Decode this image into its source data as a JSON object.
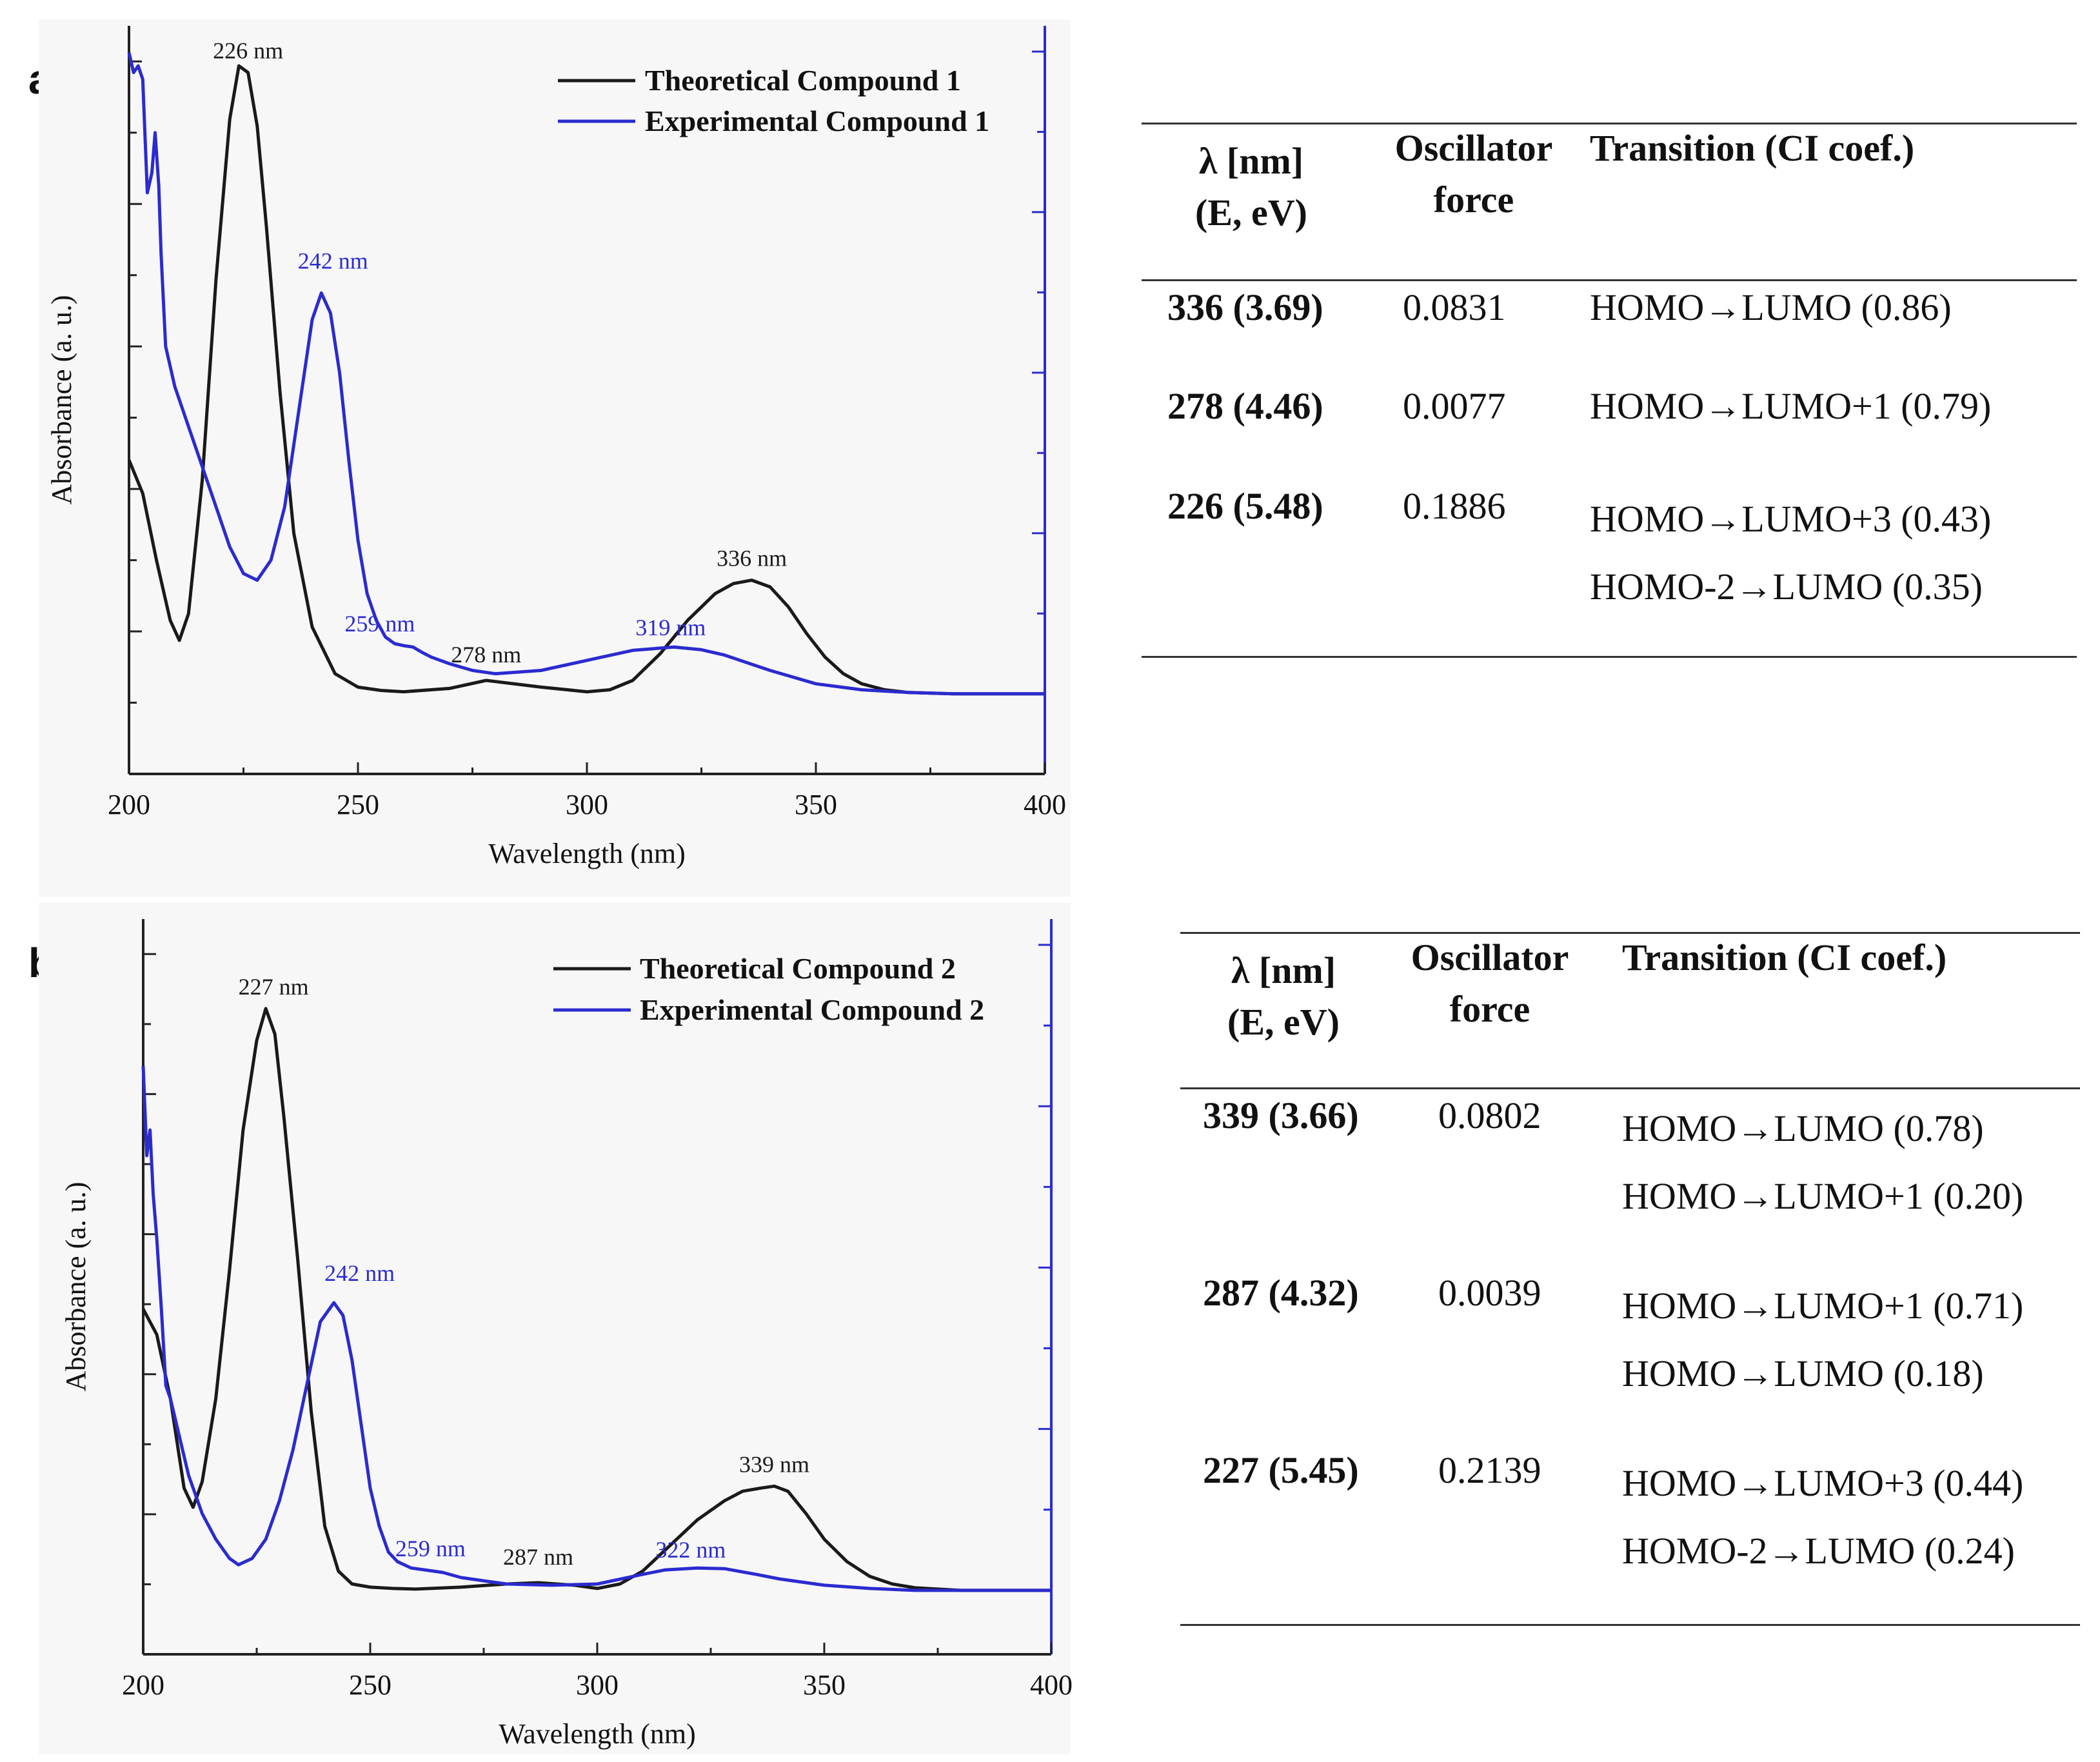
{
  "panels": [
    {
      "label": "a)",
      "chart_data": {
        "type": "line",
        "xlabel": "Wavelength (nm)",
        "ylabel": "Absorbance (a. u.)",
        "xlim": [
          200,
          400
        ],
        "xticks": [
          200,
          250,
          300,
          350,
          400
        ],
        "ylim": [
          -0.12,
          1.0
        ],
        "grid": false,
        "legend_position": "top-right",
        "series": [
          {
            "name": "Theoretical Compound 1",
            "color": "#1a1a1a",
            "x": [
              200,
              203,
              206,
              209,
              211,
              213,
              216,
              219,
              222,
              224,
              226,
              228,
              230,
              233,
              236,
              240,
              245,
              250,
              255,
              260,
              270,
              278,
              290,
              300,
              305,
              310,
              316,
              322,
              328,
              332,
              336,
              340,
              344,
              348,
              352,
              356,
              360,
              365,
              370,
              380,
              390,
              400
            ],
            "y": [
              0.35,
              0.3,
              0.2,
              0.11,
              0.08,
              0.12,
              0.32,
              0.62,
              0.86,
              0.94,
              0.93,
              0.85,
              0.7,
              0.45,
              0.24,
              0.1,
              0.03,
              0.01,
              0.005,
              0.003,
              0.008,
              0.02,
              0.01,
              0.003,
              0.006,
              0.02,
              0.06,
              0.11,
              0.15,
              0.165,
              0.17,
              0.16,
              0.13,
              0.09,
              0.055,
              0.03,
              0.015,
              0.006,
              0.002,
              0.0,
              0.0,
              0.0
            ]
          },
          {
            "name": "Experimental Compound 1",
            "color": "#2b2bd0",
            "x": [
              200,
              201,
              202,
              203,
              204,
              205,
              205.7,
              206.5,
              207,
              208,
              210,
              213,
              216,
              219,
              222,
              225,
              228,
              231,
              234,
              237,
              240,
              242,
              244,
              246,
              248,
              250,
              252,
              254,
              256,
              258,
              260,
              262,
              264,
              266,
              270,
              275,
              280,
              290,
              300,
              310,
              319,
              325,
              330,
              340,
              350,
              360,
              370,
              380,
              390,
              400
            ],
            "y": [
              0.96,
              0.93,
              0.94,
              0.92,
              0.75,
              0.78,
              0.84,
              0.76,
              0.66,
              0.52,
              0.46,
              0.4,
              0.34,
              0.28,
              0.22,
              0.18,
              0.17,
              0.2,
              0.28,
              0.42,
              0.56,
              0.6,
              0.57,
              0.48,
              0.35,
              0.23,
              0.15,
              0.11,
              0.085,
              0.075,
              0.072,
              0.07,
              0.062,
              0.055,
              0.045,
              0.035,
              0.03,
              0.035,
              0.05,
              0.065,
              0.07,
              0.066,
              0.058,
              0.035,
              0.015,
              0.006,
              0.002,
              0.0,
              0.0,
              0.0
            ]
          }
        ],
        "annotations": [
          {
            "text": "226 nm",
            "x": 226,
            "y": 0.93,
            "series": "Theoretical Compound 1"
          },
          {
            "text": "242 nm",
            "x": 242,
            "y": 0.6,
            "series": "Experimental Compound 1"
          },
          {
            "text": "259 nm",
            "x": 259,
            "y": 0.072,
            "series": "Experimental Compound 1"
          },
          {
            "text": "278 nm",
            "x": 278,
            "y": 0.02,
            "series": "Theoretical Compound 1"
          },
          {
            "text": "319 nm",
            "x": 319,
            "y": 0.07,
            "series": "Experimental Compound 1"
          },
          {
            "text": "336 nm",
            "x": 336,
            "y": 0.17,
            "series": "Theoretical Compound 1"
          }
        ]
      },
      "table": {
        "headers": [
          [
            "λ [nm]",
            "(E, eV)"
          ],
          [
            "Oscillator",
            "force"
          ],
          [
            "Transition (CI coef.)"
          ]
        ],
        "rows": [
          {
            "lambda": "336 (3.69)",
            "force": "0.0831",
            "transitions": [
              "HOMO→LUMO (0.86)"
            ]
          },
          {
            "lambda": "278 (4.46)",
            "force": "0.0077",
            "transitions": [
              "HOMO→LUMO+1 (0.79)"
            ]
          },
          {
            "lambda": "226 (5.48)",
            "force": "0.1886",
            "transitions": [
              "HOMO→LUMO+3 (0.43)",
              "HOMO-2→LUMO (0.35)"
            ]
          }
        ]
      }
    },
    {
      "label": "b)",
      "chart_data": {
        "type": "line",
        "xlabel": "Wavelength (nm)",
        "ylabel": "Absorbance (a. u.)",
        "xlim": [
          200,
          400
        ],
        "xticks": [
          200,
          250,
          300,
          350,
          400
        ],
        "ylim": [
          -0.1,
          1.05
        ],
        "grid": false,
        "legend_position": "top-right",
        "series": [
          {
            "name": "Theoretical Compound 2",
            "color": "#1a1a1a",
            "x": [
              200,
              203,
              206,
              209,
              211,
              213,
              216,
              219,
              222,
              225,
              227,
              229,
              231,
              234,
              237,
              240,
              243,
              246,
              250,
              255,
              260,
              270,
              280,
              287,
              295,
              300,
              305,
              310,
              316,
              322,
              328,
              332,
              336,
              339,
              342,
              346,
              350,
              355,
              360,
              365,
              370,
              380,
              390,
              400
            ],
            "y": [
              0.44,
              0.4,
              0.3,
              0.16,
              0.13,
              0.17,
              0.3,
              0.5,
              0.72,
              0.86,
              0.91,
              0.87,
              0.74,
              0.52,
              0.28,
              0.1,
              0.03,
              0.01,
              0.005,
              0.003,
              0.002,
              0.005,
              0.01,
              0.012,
              0.008,
              0.003,
              0.01,
              0.03,
              0.07,
              0.11,
              0.14,
              0.155,
              0.16,
              0.163,
              0.155,
              0.12,
              0.08,
              0.045,
              0.022,
              0.01,
              0.004,
              0.0,
              0.0,
              0.0
            ]
          },
          {
            "name": "Experimental Compound 2",
            "color": "#2b2bd0",
            "x": [
              200,
              200.8,
              201.5,
              202.2,
              203,
              204,
              205,
              206,
              208,
              210,
              213,
              216,
              219,
              221,
              224,
              227,
              230,
              233,
              236,
              239,
              242,
              244,
              246,
              248,
              250,
              252,
              254,
              256,
              259,
              262,
              266,
              270,
              280,
              290,
              300,
              310,
              315,
              322,
              328,
              335,
              340,
              350,
              360,
              370,
              380,
              390,
              400
            ],
            "y": [
              0.82,
              0.68,
              0.72,
              0.62,
              0.55,
              0.44,
              0.32,
              0.3,
              0.24,
              0.18,
              0.12,
              0.08,
              0.05,
              0.04,
              0.05,
              0.08,
              0.14,
              0.22,
              0.32,
              0.42,
              0.45,
              0.43,
              0.36,
              0.26,
              0.16,
              0.1,
              0.06,
              0.045,
              0.035,
              0.032,
              0.028,
              0.02,
              0.01,
              0.008,
              0.01,
              0.025,
              0.032,
              0.035,
              0.034,
              0.025,
              0.018,
              0.008,
              0.003,
              0.0,
              0.0,
              0.0,
              0.0
            ]
          }
        ],
        "annotations": [
          {
            "text": "227 nm",
            "x": 227,
            "y": 0.91,
            "series": "Theoretical Compound 2"
          },
          {
            "text": "242 nm",
            "x": 242,
            "y": 0.45,
            "series": "Experimental Compound 2"
          },
          {
            "text": "259 nm",
            "x": 259,
            "y": 0.035,
            "series": "Experimental Compound 2"
          },
          {
            "text": "287 nm",
            "x": 287,
            "y": 0.012,
            "series": "Theoretical Compound 2"
          },
          {
            "text": "322 nm",
            "x": 322,
            "y": 0.035,
            "series": "Experimental Compound 2"
          },
          {
            "text": "339 nm",
            "x": 339,
            "y": 0.163,
            "series": "Theoretical Compound 2"
          }
        ]
      },
      "table": {
        "headers": [
          [
            "λ [nm]",
            "(E, eV)"
          ],
          [
            "Oscillator",
            "force"
          ],
          [
            "Transition (CI coef.)"
          ]
        ],
        "rows": [
          {
            "lambda": "339 (3.66)",
            "force": "0.0802",
            "transitions": [
              "HOMO→LUMO (0.78)",
              "HOMO→LUMO+1 (0.20)"
            ]
          },
          {
            "lambda": "287 (4.32)",
            "force": "0.0039",
            "transitions": [
              "HOMO→LUMO+1 (0.71)",
              "HOMO→LUMO (0.18)"
            ]
          },
          {
            "lambda": "227 (5.45)",
            "force": "0.2139",
            "transitions": [
              "HOMO→LUMO+3 (0.44)",
              "HOMO-2→LUMO (0.24)"
            ]
          }
        ]
      }
    }
  ]
}
